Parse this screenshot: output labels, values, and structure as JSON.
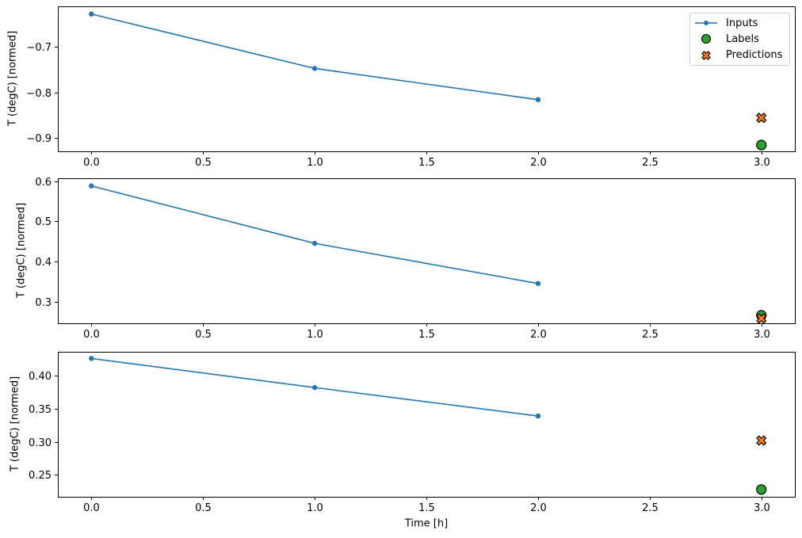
{
  "figure": {
    "background": "#ffffff",
    "frame_color": "#000000",
    "tick_color": "#000000"
  },
  "legend": {
    "position": "upper right",
    "entries": [
      {
        "label": "Inputs",
        "marker": "line-dot",
        "color": "#1f77b4",
        "edge_color": "#1f77b4"
      },
      {
        "label": "Labels",
        "marker": "circle",
        "color": "#2ca02c",
        "edge_color": "#000000"
      },
      {
        "label": "Predictions",
        "marker": "x",
        "color": "#ff7f0e",
        "edge_color": "#000000"
      }
    ]
  },
  "chart_data": [
    {
      "type": "line",
      "title": "",
      "xlabel": "",
      "ylabel": "T (degC) [normed]",
      "xlim": [
        -0.15,
        3.15
      ],
      "ylim": [
        -0.93,
        -0.61
      ],
      "grid": false,
      "legend_visible": true,
      "x_tick_values": [
        0.0,
        0.5,
        1.0,
        1.5,
        2.0,
        2.5,
        3.0
      ],
      "x_tick_labels": [
        "0.0",
        "0.5",
        "1.0",
        "1.5",
        "2.0",
        "2.5",
        "3.0"
      ],
      "y_tick_values": [
        -0.7,
        -0.8,
        -0.9
      ],
      "y_tick_labels": [
        "−0.7",
        "−0.8",
        "−0.9"
      ],
      "series": [
        {
          "name": "Inputs",
          "kind": "line",
          "marker": "dot",
          "color": "#1f77b4",
          "x": [
            0,
            1,
            2
          ],
          "y": [
            -0.627,
            -0.747,
            -0.816
          ]
        },
        {
          "name": "Labels",
          "kind": "scatter",
          "marker": "circle",
          "color": "#2ca02c",
          "edge_color": "#000000",
          "x": [
            3
          ],
          "y": [
            -0.916
          ]
        },
        {
          "name": "Predictions",
          "kind": "scatter",
          "marker": "x",
          "color": "#ff7f0e",
          "edge_color": "#000000",
          "x": [
            3
          ],
          "y": [
            -0.856
          ]
        }
      ]
    },
    {
      "type": "line",
      "title": "",
      "xlabel": "",
      "ylabel": "T (degC) [normed]",
      "xlim": [
        -0.15,
        3.15
      ],
      "ylim": [
        0.246,
        0.607
      ],
      "grid": false,
      "legend_visible": false,
      "x_tick_values": [
        0.0,
        0.5,
        1.0,
        1.5,
        2.0,
        2.5,
        3.0
      ],
      "x_tick_labels": [
        "0.0",
        "0.5",
        "1.0",
        "1.5",
        "2.0",
        "2.5",
        "3.0"
      ],
      "y_tick_values": [
        0.3,
        0.4,
        0.5,
        0.6
      ],
      "y_tick_labels": [
        "0.3",
        "0.4",
        "0.5",
        "0.6"
      ],
      "series": [
        {
          "name": "Inputs",
          "kind": "line",
          "marker": "dot",
          "color": "#1f77b4",
          "x": [
            0,
            1,
            2
          ],
          "y": [
            0.588,
            0.445,
            0.345
          ]
        },
        {
          "name": "Labels",
          "kind": "scatter",
          "marker": "circle",
          "color": "#2ca02c",
          "edge_color": "#000000",
          "x": [
            3
          ],
          "y": [
            0.266
          ]
        },
        {
          "name": "Predictions",
          "kind": "scatter",
          "marker": "x",
          "color": "#ff7f0e",
          "edge_color": "#000000",
          "x": [
            3
          ],
          "y": [
            0.258
          ]
        }
      ]
    },
    {
      "type": "line",
      "title": "",
      "xlabel": "Time [h]",
      "ylabel": "T (degC) [normed]",
      "xlim": [
        -0.15,
        3.15
      ],
      "ylim": [
        0.217,
        0.436
      ],
      "grid": false,
      "legend_visible": false,
      "x_tick_values": [
        0.0,
        0.5,
        1.0,
        1.5,
        2.0,
        2.5,
        3.0
      ],
      "x_tick_labels": [
        "0.0",
        "0.5",
        "1.0",
        "1.5",
        "2.0",
        "2.5",
        "3.0"
      ],
      "y_tick_values": [
        0.25,
        0.3,
        0.35,
        0.4
      ],
      "y_tick_labels": [
        "0.25",
        "0.30",
        "0.35",
        "0.40"
      ],
      "series": [
        {
          "name": "Inputs",
          "kind": "line",
          "marker": "dot",
          "color": "#1f77b4",
          "x": [
            0,
            1,
            2
          ],
          "y": [
            0.426,
            0.382,
            0.339
          ]
        },
        {
          "name": "Labels",
          "kind": "scatter",
          "marker": "circle",
          "color": "#2ca02c",
          "edge_color": "#000000",
          "x": [
            3
          ],
          "y": [
            0.228
          ]
        },
        {
          "name": "Predictions",
          "kind": "scatter",
          "marker": "x",
          "color": "#ff7f0e",
          "edge_color": "#000000",
          "x": [
            3
          ],
          "y": [
            0.302
          ]
        }
      ]
    }
  ]
}
